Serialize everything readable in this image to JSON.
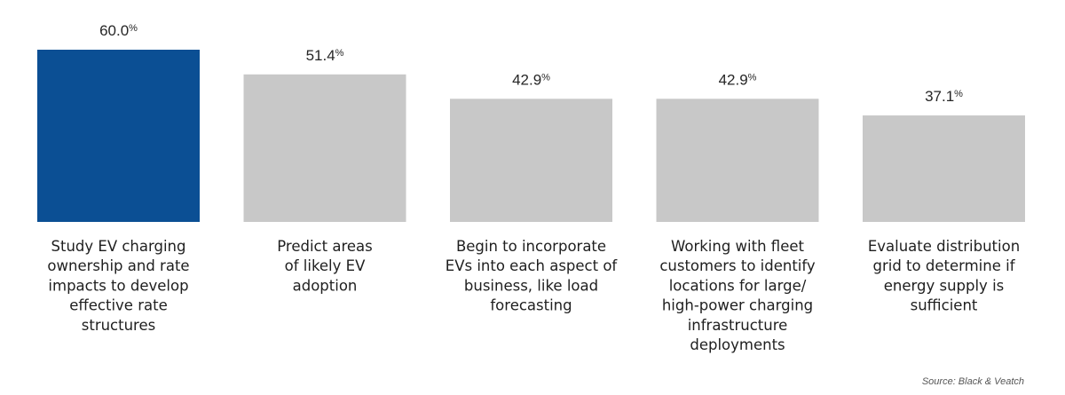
{
  "chart_data": {
    "type": "bar",
    "categories": [
      [
        "Study EV charging",
        "ownership and rate",
        "impacts to develop",
        "effective rate",
        "structures"
      ],
      [
        "Predict areas",
        "of likely EV",
        "adoption"
      ],
      [
        "Begin to incorporate",
        "EVs into each aspect of",
        "business, like load",
        "forecasting"
      ],
      [
        "Working with fleet",
        "customers to identify",
        "locations for large/",
        "high-power charging",
        "infrastructure",
        "deployments"
      ],
      [
        "Evaluate distribution",
        "grid to determine if",
        "energy supply is",
        "sufficient"
      ]
    ],
    "values": [
      60.0,
      51.4,
      42.9,
      42.9,
      37.1
    ],
    "value_labels": [
      "60.0",
      "51.4",
      "42.9",
      "42.9",
      "37.1"
    ],
    "value_suffix": "%",
    "colors": [
      "#0b4f94",
      "#c8c8c8",
      "#c8c8c8",
      "#c8c8c8",
      "#c8c8c8"
    ],
    "ylim": [
      0,
      60
    ],
    "grid": false,
    "legend": "none"
  },
  "source": "Source: Black & Veatch"
}
